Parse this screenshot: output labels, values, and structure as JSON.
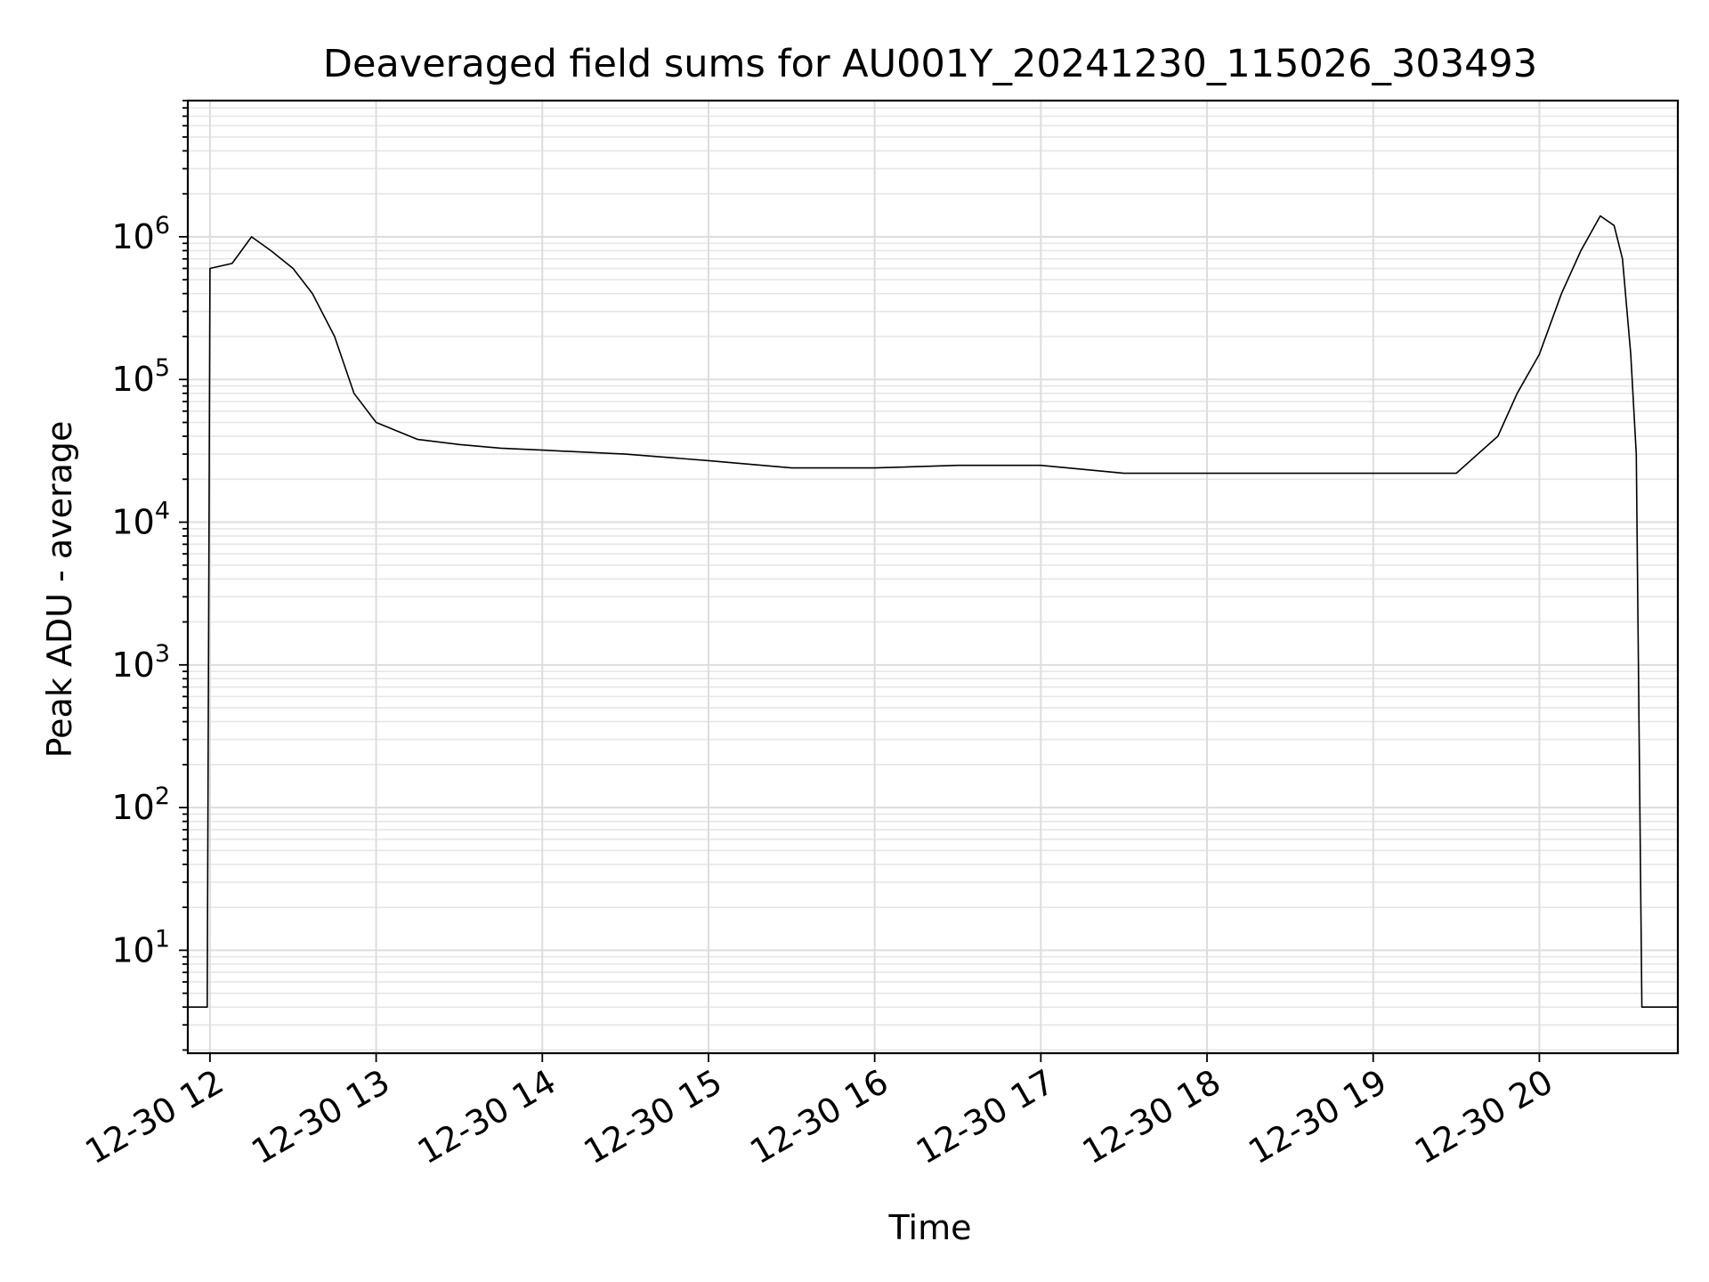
{
  "chart_data": {
    "type": "line",
    "title": "Deaveraged field sums for AU001Y_20241230_115026_303493",
    "xlabel": "Time",
    "ylabel": "Peak ADU - average",
    "yscale": "log",
    "grid": true,
    "xlim": [
      "2024-12-30 11:52",
      "2024-12-30 20:50"
    ],
    "ylim": [
      1.9,
      9000000
    ],
    "x_ticks": [
      {
        "value": "2024-12-30 12:00",
        "label": "12-30 12"
      },
      {
        "value": "2024-12-30 13:00",
        "label": "12-30 13"
      },
      {
        "value": "2024-12-30 14:00",
        "label": "12-30 14"
      },
      {
        "value": "2024-12-30 15:00",
        "label": "12-30 15"
      },
      {
        "value": "2024-12-30 16:00",
        "label": "12-30 16"
      },
      {
        "value": "2024-12-30 17:00",
        "label": "12-30 17"
      },
      {
        "value": "2024-12-30 18:00",
        "label": "12-30 18"
      },
      {
        "value": "2024-12-30 19:00",
        "label": "12-30 19"
      },
      {
        "value": "2024-12-30 20:00",
        "label": "12-30 20"
      }
    ],
    "y_ticks": [
      {
        "value": 10,
        "base": "10",
        "exp": "1"
      },
      {
        "value": 100,
        "base": "10",
        "exp": "2"
      },
      {
        "value": 1000,
        "base": "10",
        "exp": "3"
      },
      {
        "value": 10000,
        "base": "10",
        "exp": "4"
      },
      {
        "value": 100000,
        "base": "10",
        "exp": "5"
      },
      {
        "value": 1000000,
        "base": "10",
        "exp": "6"
      }
    ],
    "series": [
      {
        "color": "#000000",
        "points": [
          [
            "2024-12-30 11:52",
            4
          ],
          [
            "2024-12-30 11:59",
            4
          ],
          [
            "2024-12-30 12:00",
            600000
          ],
          [
            "2024-12-30 12:08",
            650000
          ],
          [
            "2024-12-30 12:15",
            1000000
          ],
          [
            "2024-12-30 12:22",
            800000
          ],
          [
            "2024-12-30 12:30",
            600000
          ],
          [
            "2024-12-30 12:37",
            400000
          ],
          [
            "2024-12-30 12:45",
            200000
          ],
          [
            "2024-12-30 12:52",
            80000
          ],
          [
            "2024-12-30 13:00",
            50000
          ],
          [
            "2024-12-30 13:15",
            38000
          ],
          [
            "2024-12-30 13:30",
            35000
          ],
          [
            "2024-12-30 13:45",
            33000
          ],
          [
            "2024-12-30 14:00",
            32000
          ],
          [
            "2024-12-30 14:30",
            30000
          ],
          [
            "2024-12-30 15:00",
            27000
          ],
          [
            "2024-12-30 15:30",
            24000
          ],
          [
            "2024-12-30 16:00",
            24000
          ],
          [
            "2024-12-30 16:30",
            25000
          ],
          [
            "2024-12-30 17:00",
            25000
          ],
          [
            "2024-12-30 17:30",
            22000
          ],
          [
            "2024-12-30 18:00",
            22000
          ],
          [
            "2024-12-30 18:30",
            22000
          ],
          [
            "2024-12-30 19:00",
            22000
          ],
          [
            "2024-12-30 19:30",
            22000
          ],
          [
            "2024-12-30 19:45",
            40000
          ],
          [
            "2024-12-30 19:52",
            80000
          ],
          [
            "2024-12-30 20:00",
            150000
          ],
          [
            "2024-12-30 20:08",
            400000
          ],
          [
            "2024-12-30 20:15",
            800000
          ],
          [
            "2024-12-30 20:22",
            1400000
          ],
          [
            "2024-12-30 20:27",
            1200000
          ],
          [
            "2024-12-30 20:30",
            700000
          ],
          [
            "2024-12-30 20:33",
            150000
          ],
          [
            "2024-12-30 20:35",
            30000
          ],
          [
            "2024-12-30 20:37",
            4
          ],
          [
            "2024-12-30 20:50",
            4
          ]
        ]
      }
    ]
  }
}
